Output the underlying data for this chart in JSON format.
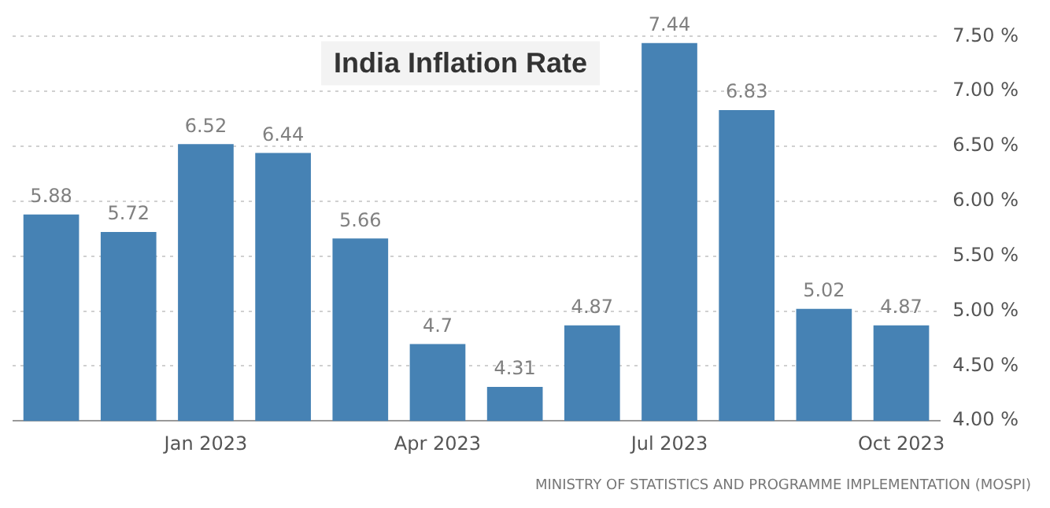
{
  "chart_data": {
    "type": "bar",
    "title": "India Inflation Rate",
    "categories": [
      null,
      null,
      "Jan 2023",
      null,
      null,
      "Apr 2023",
      null,
      null,
      "Jul 2023",
      null,
      null,
      "Oct 2023"
    ],
    "values": [
      5.88,
      5.72,
      6.52,
      6.44,
      5.66,
      4.7,
      4.31,
      4.87,
      7.44,
      6.83,
      5.02,
      4.87
    ],
    "color": "#4682b4",
    "ylim": [
      4,
      7.5
    ],
    "yticks": [
      {
        "value": 4,
        "label": "4.00 %"
      },
      {
        "value": 4.5,
        "label": "4.50 %"
      },
      {
        "value": 5,
        "label": "5.00 %"
      },
      {
        "value": 5.5,
        "label": "5.50 %"
      },
      {
        "value": 6,
        "label": "6.00 %"
      },
      {
        "value": 6.5,
        "label": "6.50 %"
      },
      {
        "value": 7,
        "label": "7.00 %"
      },
      {
        "value": 7.5,
        "label": "7.50 %"
      }
    ],
    "grid": "y",
    "data_labels": true,
    "annotations": [
      "MINISTRY OF STATISTICS AND PROGRAMME IMPLEMENTATION (MOSPI)"
    ]
  }
}
